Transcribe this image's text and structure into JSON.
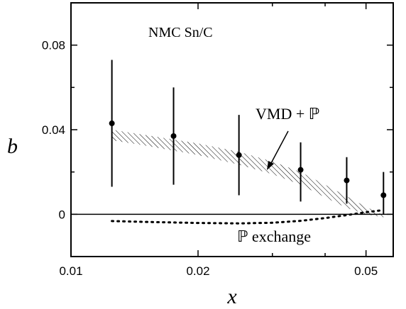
{
  "chart_data": {
    "type": "scatter",
    "title": "",
    "xlabel": "x",
    "ylabel": "b",
    "x_scale": "log",
    "xlim": [
      0.01,
      0.058
    ],
    "ylim": [
      -0.02,
      0.1
    ],
    "x_ticks": [
      0.01,
      0.02,
      0.05
    ],
    "x_tick_labels": [
      "0.01",
      "0.02",
      "0.05"
    ],
    "y_ticks": [
      0,
      0.04,
      0.08
    ],
    "y_tick_labels": [
      "0",
      "0.04",
      "0.08"
    ],
    "grid": false,
    "annotations": {
      "dataset": "NMC Sn/C",
      "band": "VMD + ℙ",
      "dotted": "ℙ exchange"
    },
    "series": [
      {
        "name": "NMC Sn/C",
        "kind": "points_with_errorbars",
        "x": [
          0.0125,
          0.0175,
          0.025,
          0.035,
          0.045,
          0.055
        ],
        "y": [
          0.043,
          0.037,
          0.028,
          0.021,
          0.016,
          0.009
        ],
        "yerr_low": [
          0.03,
          0.023,
          0.019,
          0.015,
          0.011,
          0.009
        ],
        "yerr_high": [
          0.03,
          0.023,
          0.019,
          0.013,
          0.011,
          0.011
        ]
      },
      {
        "name": "VMD + ℙ",
        "kind": "band",
        "x": [
          0.0125,
          0.015,
          0.02,
          0.025,
          0.03,
          0.035,
          0.04,
          0.045,
          0.05,
          0.055
        ],
        "y_high": [
          0.04,
          0.0375,
          0.0335,
          0.0295,
          0.025,
          0.02,
          0.014,
          0.0085,
          0.0035,
          -0.0005
        ],
        "y_low": [
          0.035,
          0.0325,
          0.028,
          0.0235,
          0.019,
          0.014,
          0.008,
          0.003,
          0.0,
          -0.0015
        ]
      },
      {
        "name": "ℙ exchange",
        "kind": "dotted_line",
        "x": [
          0.0125,
          0.015,
          0.02,
          0.025,
          0.03,
          0.035,
          0.04,
          0.045,
          0.05,
          0.055
        ],
        "y": [
          -0.0032,
          -0.0036,
          -0.0041,
          -0.0043,
          -0.004,
          -0.0031,
          -0.0018,
          -0.0004,
          0.001,
          0.002
        ]
      }
    ]
  }
}
